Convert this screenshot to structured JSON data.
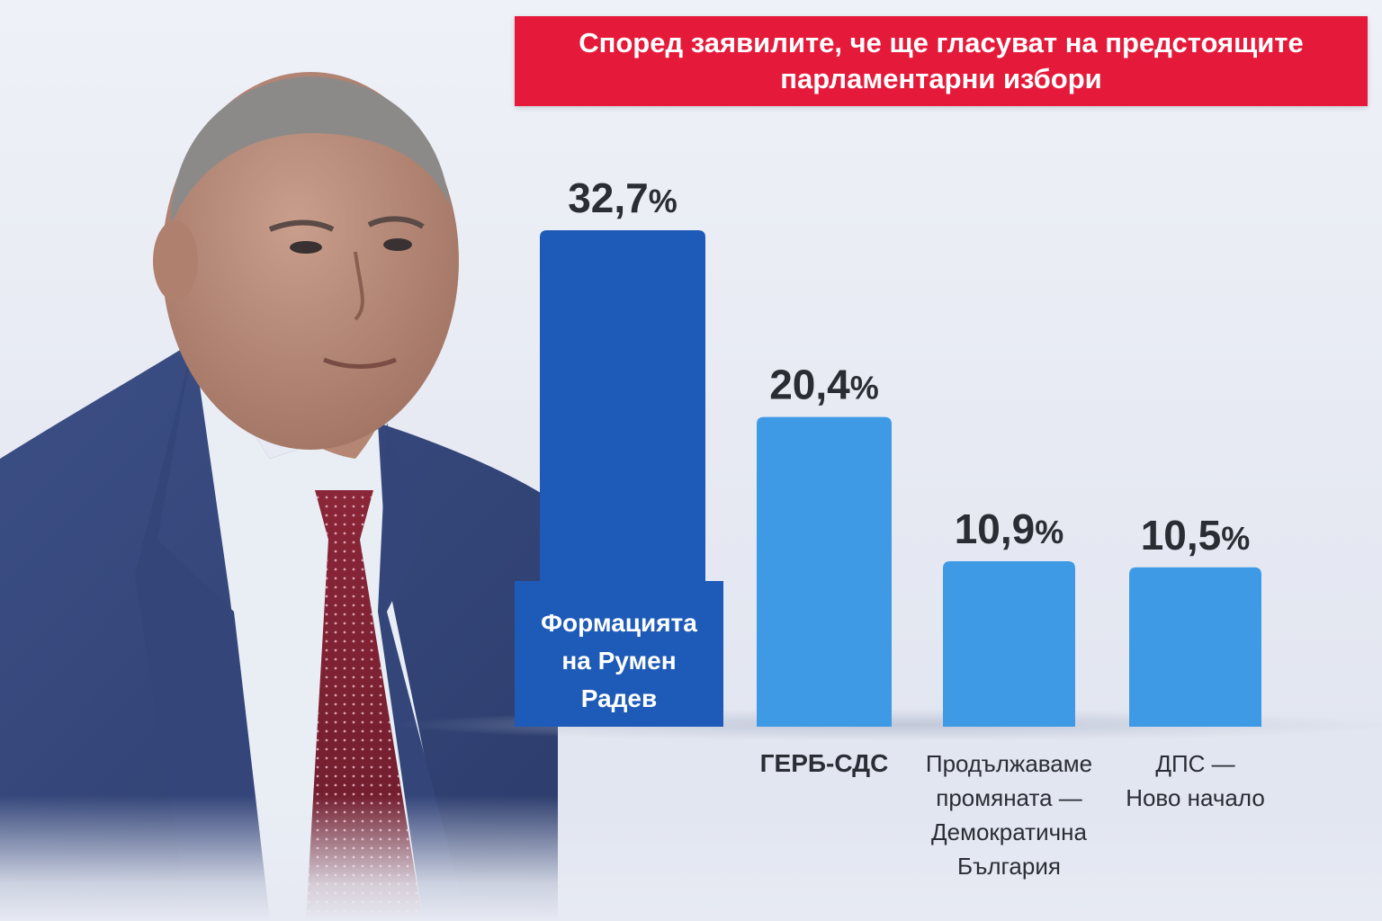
{
  "title": {
    "line1": "Според заявилите, че ще гласуват на предстоящите",
    "line2": "парламентарни избори"
  },
  "photo": {
    "subject": "man in suit",
    "icon": "portrait-photo"
  },
  "colors": {
    "banner": "#e51a3a",
    "highlight_bar": "#1e5bb8",
    "bar": "#3f9ae6",
    "text": "#2a2d33"
  },
  "chart_data": {
    "type": "bar",
    "categories": [
      [
        "Формацията",
        "на Румен",
        "Радев"
      ],
      [
        "ГЕРБ-СДС"
      ],
      [
        "Продължаваме",
        "промяната —",
        "Демократична",
        "България"
      ],
      [
        "ДПС —",
        "Ново начало"
      ]
    ],
    "values": [
      32.7,
      20.4,
      10.9,
      10.5
    ],
    "value_labels": [
      "32,7",
      "20,4",
      "10,9",
      "10,5"
    ],
    "unit": "%",
    "highlight_index": 0,
    "ylim": [
      0,
      35
    ],
    "grid": false,
    "legend": "none"
  }
}
